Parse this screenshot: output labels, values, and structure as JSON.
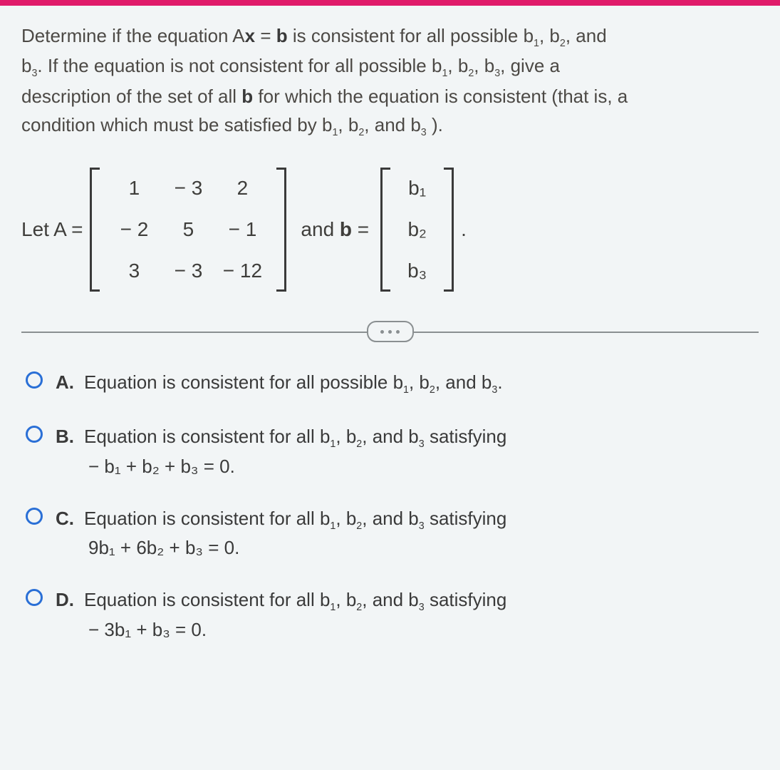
{
  "colors": {
    "topbar": "#e01b6a",
    "background": "#f2f5f6",
    "text": "#3a3a3a",
    "rule": "#8a8f91",
    "radio_border": "#2a6fd6"
  },
  "prompt": {
    "line1a": "Determine if the equation A",
    "line1b": " is consistent for all possible b",
    "line1c": ", b",
    "line1d": ", and",
    "line2a": "b",
    "line2b": ". If the equation is not consistent for all possible b",
    "line2c": ", b",
    "line2d": ", b",
    "line2e": ", give a",
    "line3": "description of the set of all ",
    "line3b": " for which the equation is consistent (that is, a",
    "line4a": "condition which must be satisfied by b",
    "line4b": ", b",
    "line4c": ", and b",
    "line4d": " ).",
    "bold_x": "x",
    "bold_eq": " = ",
    "bold_b": "b",
    "s1": "1",
    "s2": "2",
    "s3": "3"
  },
  "defs": {
    "letA": "Let A =",
    "andb": "and ",
    "bbold": "b",
    "beq": " =",
    "period": "."
  },
  "matrixA": {
    "rows": 3,
    "cols": 3,
    "cells": [
      "1",
      "− 3",
      "2",
      "− 2",
      "5",
      "− 1",
      "3",
      "− 3",
      "− 12"
    ]
  },
  "vecB": {
    "entries": [
      "b₁",
      "b₂",
      "b₃"
    ]
  },
  "choices": {
    "A": {
      "letter": "A.",
      "text1": "Equation is consistent for all possible b",
      "text2": ", b",
      "text3": ", and b",
      "text4": "."
    },
    "B": {
      "letter": "B.",
      "text1": "Equation is consistent for all b",
      "text2": ", b",
      "text3": ", and b",
      "text4": " satisfying",
      "line2": "− b₁ + b₂ + b₃ = 0."
    },
    "C": {
      "letter": "C.",
      "text1": "Equation is consistent for all b",
      "text2": ", b",
      "text3": ", and b",
      "text4": " satisfying",
      "line2": "9b₁ + 6b₂ + b₃ = 0."
    },
    "D": {
      "letter": "D.",
      "text1": "Equation is consistent for all b",
      "text2": ", b",
      "text3": ", and b",
      "text4": " satisfying",
      "line2": "− 3b₁ + b₃ = 0."
    }
  }
}
